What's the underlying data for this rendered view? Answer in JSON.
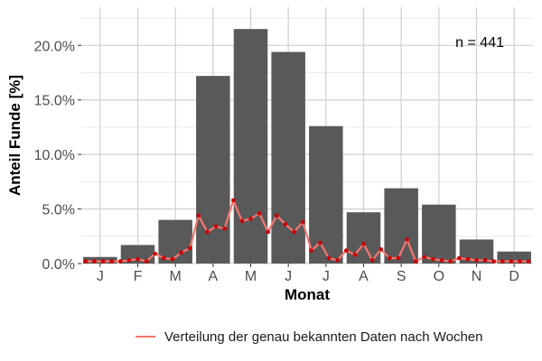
{
  "chart_data": {
    "type": "bar",
    "categories": [
      "J",
      "F",
      "M",
      "A",
      "M",
      "J",
      "J",
      "A",
      "S",
      "O",
      "N",
      "D"
    ],
    "values": [
      0.6,
      1.7,
      4.0,
      17.2,
      21.5,
      19.4,
      12.6,
      4.7,
      6.9,
      5.4,
      2.2,
      1.1
    ],
    "ylim": [
      0,
      23.5
    ],
    "yticks": [
      0,
      5,
      10,
      15,
      20
    ],
    "ytick_labels": [
      "0.0%",
      "5.0%",
      "10.0%",
      "15.0%",
      "20.0%"
    ],
    "xlabel": "Monat",
    "ylabel": "Anteil Funde [%]",
    "annotation": "n = 441",
    "bar_color": "#595959",
    "grid": true,
    "legend_position": "bottom",
    "line_series": {
      "name": "Verteilung der genau bekannten Daten nach Wochen",
      "color": "#f8766d",
      "marker_color": "#cc0000",
      "x_weeks": [
        1,
        2,
        3,
        4,
        5,
        6,
        7,
        8,
        9,
        10,
        11,
        12,
        13,
        14,
        15,
        16,
        17,
        18,
        19,
        20,
        21,
        22,
        23,
        24,
        25,
        26,
        27,
        28,
        29,
        30,
        31,
        32,
        33,
        34,
        35,
        36,
        37,
        38,
        39,
        40,
        41,
        42,
        43,
        44,
        45,
        46,
        47,
        48,
        49,
        50,
        51,
        52
      ],
      "values": [
        0.2,
        0.2,
        0.2,
        0.2,
        0.2,
        0.3,
        0.4,
        0.2,
        0.9,
        0.5,
        0.4,
        1.0,
        1.4,
        4.4,
        2.9,
        3.4,
        3.2,
        5.8,
        3.9,
        4.1,
        4.6,
        2.9,
        4.4,
        3.6,
        2.9,
        3.8,
        1.2,
        1.9,
        0.5,
        0.3,
        1.2,
        0.8,
        1.8,
        0.3,
        1.3,
        0.5,
        0.5,
        2.2,
        0.2,
        0.6,
        0.4,
        0.3,
        0.2,
        0.5,
        0.4,
        0.3,
        0.3,
        0.2,
        0.2,
        0.2,
        0.2,
        0.2
      ]
    }
  }
}
